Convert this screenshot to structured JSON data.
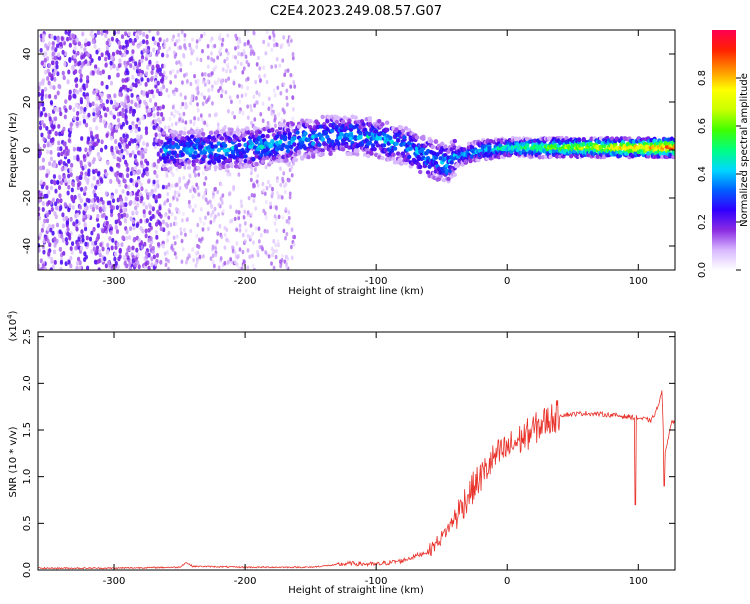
{
  "figure": {
    "title": "C2E4.2023.249.08.57.G07"
  },
  "chart_data": [
    {
      "type": "heatmap",
      "xlabel": "Height of straight line (km)",
      "ylabel": "Frequency (Hz)",
      "xlim": [
        -358,
        128
      ],
      "ylim": [
        -50,
        50
      ],
      "xticks": [
        -300,
        -200,
        -100,
        0,
        100
      ],
      "yticks": [
        -40,
        -20,
        0,
        20,
        40
      ],
      "colorbar": {
        "label": "Normalized spectral amplitude",
        "range": [
          0,
          1
        ],
        "ticks": [
          "0.0",
          "0.2",
          "0.4",
          "0.6",
          "0.8"
        ],
        "tick_values": [
          0.0,
          0.2,
          0.4,
          0.6,
          0.8
        ],
        "colormap": [
          "#ffffff",
          "#d8b8ff",
          "#8a2be2",
          "#3000ff",
          "#0060ff",
          "#00d8ff",
          "#00ff80",
          "#40ff00",
          "#c8ff00",
          "#ffff00",
          "#ff9000",
          "#ff2000",
          "#ff0050"
        ]
      },
      "ridge": {
        "x": [
          -262,
          -240,
          -220,
          -200,
          -180,
          -160,
          -140,
          -120,
          -100,
          -80,
          -60,
          -45,
          -40,
          -20,
          0,
          20,
          40,
          60,
          80,
          100,
          120,
          128
        ],
        "frequency": [
          0,
          0,
          0,
          1,
          2,
          4,
          6,
          6,
          5,
          2,
          -3,
          -6,
          -3,
          0,
          1,
          1,
          1,
          1,
          1,
          1,
          1,
          1
        ]
      },
      "noise_region_x": [
        -358,
        -262
      ]
    },
    {
      "type": "line",
      "xlabel": "Height of straight line (km)",
      "ylabel": "SNR (10 * v/v)",
      "yscale_label": "(x10^4)",
      "xlim": [
        -358,
        128
      ],
      "ylim": [
        0,
        2.55
      ],
      "xticks": [
        -300,
        -200,
        -100,
        0,
        100
      ],
      "yticks": [
        0.0,
        0.5,
        1.0,
        1.5,
        2.0,
        2.5
      ],
      "ytick_labels": [
        "0.0",
        "0.5",
        "1.0",
        "1.5",
        "2.0",
        "2.5"
      ],
      "series": [
        {
          "color": "#e8322a",
          "x": [
            -358,
            -300,
            -250,
            -245,
            -240,
            -200,
            -150,
            -120,
            -100,
            -80,
            -60,
            -50,
            -40,
            -30,
            -20,
            -10,
            0,
            10,
            20,
            30,
            40,
            60,
            80,
            100,
            110,
            115,
            118,
            120,
            125,
            128
          ],
          "y": [
            0.02,
            0.02,
            0.03,
            0.08,
            0.04,
            0.03,
            0.03,
            0.07,
            0.06,
            0.1,
            0.2,
            0.35,
            0.55,
            0.8,
            1.0,
            1.2,
            1.3,
            1.4,
            1.5,
            1.6,
            1.66,
            1.68,
            1.66,
            1.63,
            1.6,
            1.75,
            1.9,
            1.2,
            1.58,
            1.6
          ]
        }
      ]
    }
  ]
}
